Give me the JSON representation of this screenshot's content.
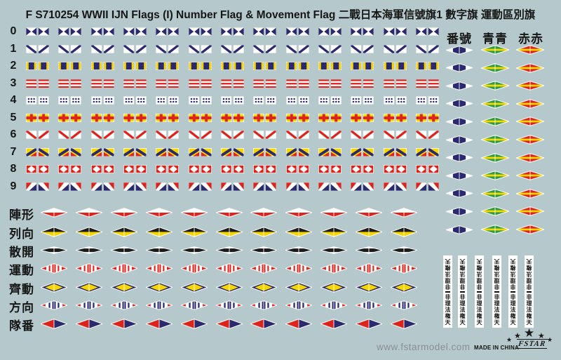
{
  "title": "F S710254 WWII IJN Flags (I) Number Flag & Movement Flag 二戰日本海軍信號旗1 數字旗 運動區別旗",
  "colors": {
    "background": "#b5c8cb",
    "navy": "#2b2a6e",
    "red": "#dc231c",
    "yellow": "#f7d600",
    "green": "#2f9c3f",
    "black": "#1b1b1b",
    "white": "#ffffff",
    "gray_text": "#8a9093"
  },
  "number_flag_rows": [
    {
      "digit": "0",
      "key": "d0",
      "design": "navy bowtie pennant pair on white"
    },
    {
      "digit": "1",
      "key": "d1",
      "design": "navy diagonal V on white"
    },
    {
      "digit": "2",
      "key": "d2",
      "design": "navy with yellow vertical bars"
    },
    {
      "digit": "3",
      "key": "d3",
      "design": "three red horizontal stripes on white"
    },
    {
      "digit": "4",
      "key": "d4",
      "design": "navy polka dots on white"
    },
    {
      "digit": "5",
      "key": "d5",
      "design": "red cross on yellow"
    },
    {
      "digit": "6",
      "key": "d6",
      "design": "red diagonal V on white"
    },
    {
      "digit": "7",
      "key": "d7",
      "design": "yellow navy red diagonal"
    },
    {
      "digit": "8",
      "key": "d8",
      "design": "white diamond on red"
    },
    {
      "digit": "9",
      "key": "d9",
      "design": "red white navy diagonal"
    }
  ],
  "number_flag_columns": 13,
  "right_columns": {
    "headers": [
      "番號",
      "青青",
      "赤赤"
    ],
    "rows": 11,
    "pennants": [
      {
        "key": "banhao",
        "design": "navy pennant pair with white tips"
      },
      {
        "key": "qing",
        "design": "green pennant pair with yellow stripe"
      },
      {
        "key": "chi",
        "design": "red pennant pair with yellow stripe"
      }
    ]
  },
  "movement_rows": [
    {
      "label": "陣形",
      "key": "m1",
      "design": "white over red diamond"
    },
    {
      "label": "列向",
      "key": "m2",
      "design": "black over yellow diamond"
    },
    {
      "label": "散開",
      "key": "m3",
      "design": "white diamond with black band"
    },
    {
      "label": "運動",
      "key": "m4",
      "design": "red and white striped diamond"
    },
    {
      "label": "齊動",
      "key": "m5",
      "design": "navy diamond with yellow core"
    },
    {
      "label": "方向",
      "key": "m6",
      "design": "navy bars with red tips diamond"
    },
    {
      "label": "隊番",
      "key": "m7",
      "design": "red and navy halves diamond"
    }
  ],
  "movement_columns": 11,
  "banner_strips": {
    "count": 6,
    "text": "非理法権天"
  },
  "footer": {
    "website": "www.fstarmodel.com",
    "origin": "MADE IN CHINA",
    "brand": "FSTAR"
  }
}
